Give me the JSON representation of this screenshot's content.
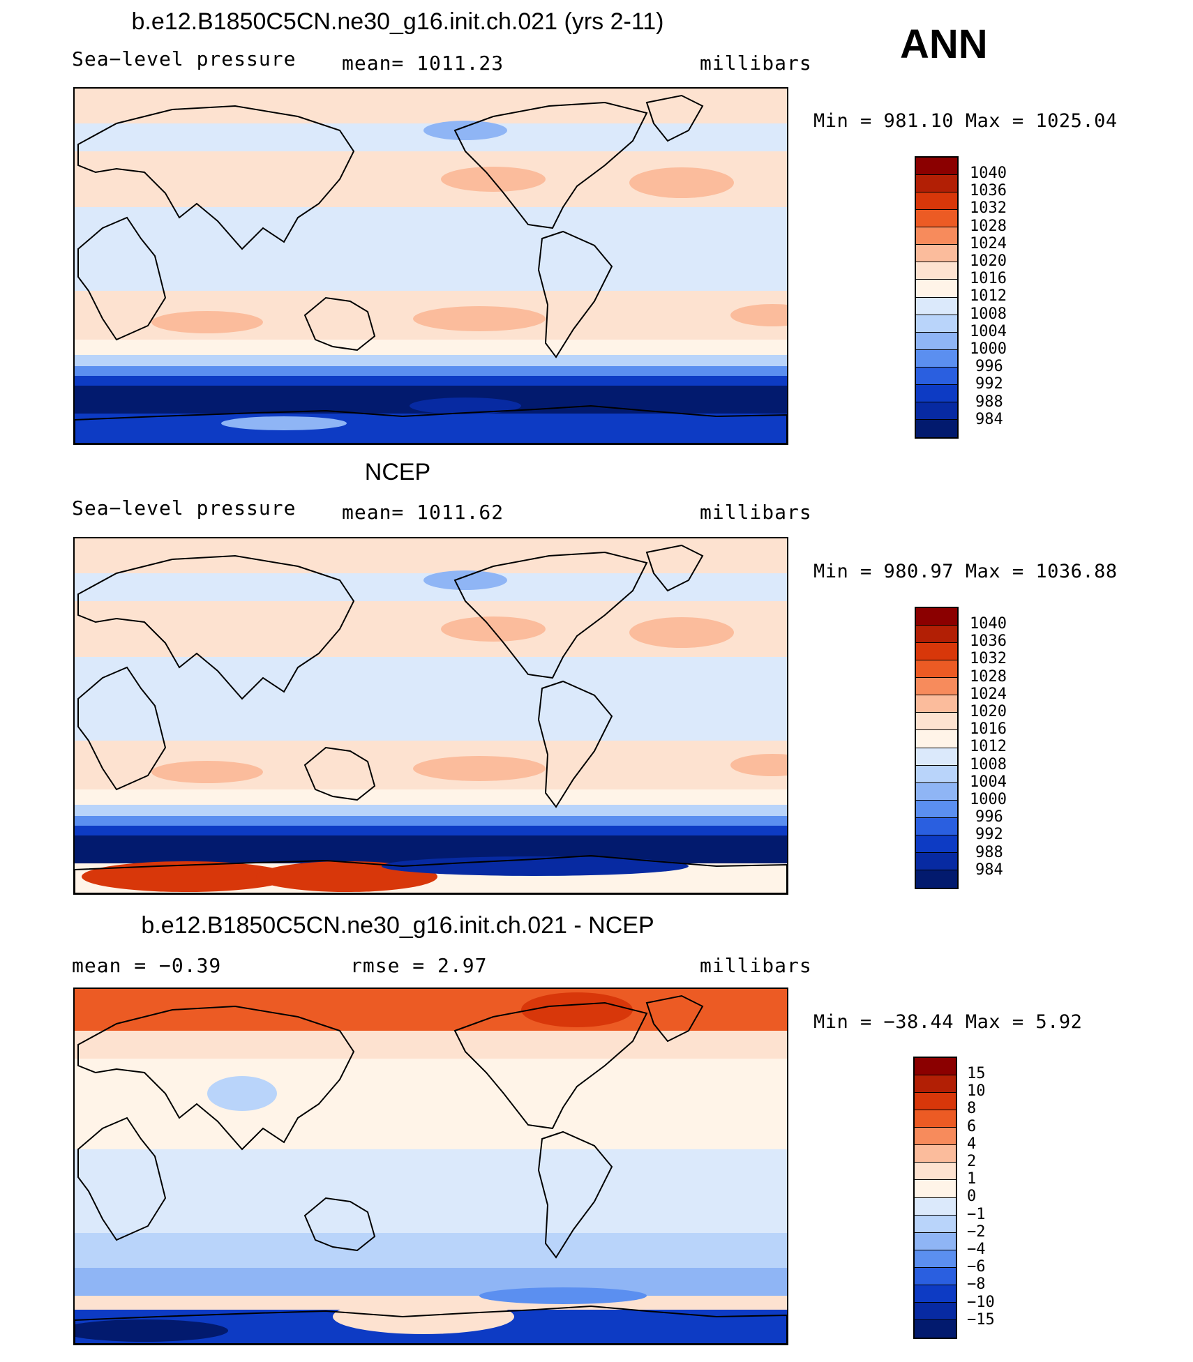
{
  "season": "ANN",
  "panels": [
    {
      "title": "b.e12.B1850C5CN.ne30_g16.init.ch.021 (yrs 2-11)",
      "left_label": "Sea−level pressure",
      "center_label": "mean=  1011.23",
      "right_label": "millibars",
      "minmax": "Min  =  981.10  Max  =  1025.04",
      "colorbar": {
        "labels": [
          "1040",
          "1036",
          "1032",
          "1028",
          "1024",
          "1020",
          "1016",
          "1012",
          "1008",
          "1004",
          "1000",
          "996",
          "992",
          "988",
          "984"
        ],
        "colors": [
          "#8b0000",
          "#b21f05",
          "#d8370a",
          "#ec5b24",
          "#f78b5c",
          "#fbbc9c",
          "#fde2d0",
          "#fff4e8",
          "#dbe9fb",
          "#b9d4fa",
          "#8fb5f5",
          "#5b8ff0",
          "#2a5fe0",
          "#0d3bc4",
          "#072aa2",
          "#021a6e"
        ]
      },
      "map_kind": "model"
    },
    {
      "title": "NCEP",
      "left_label": "Sea−level pressure",
      "center_label": "mean=  1011.62",
      "right_label": "millibars",
      "minmax": "Min  =  980.97  Max  =  1036.88",
      "colorbar": {
        "labels": [
          "1040",
          "1036",
          "1032",
          "1028",
          "1024",
          "1020",
          "1016",
          "1012",
          "1008",
          "1004",
          "1000",
          "996",
          "992",
          "988",
          "984"
        ],
        "colors": [
          "#8b0000",
          "#b21f05",
          "#d8370a",
          "#ec5b24",
          "#f78b5c",
          "#fbbc9c",
          "#fde2d0",
          "#fff4e8",
          "#dbe9fb",
          "#b9d4fa",
          "#8fb5f5",
          "#5b8ff0",
          "#2a5fe0",
          "#0d3bc4",
          "#072aa2",
          "#021a6e"
        ]
      },
      "map_kind": "obs"
    },
    {
      "title": "b.e12.B1850C5CN.ne30_g16.init.ch.021 - NCEP",
      "left_label": "mean  =    −0.39",
      "center_label": "rmse  =     2.97",
      "right_label": "millibars",
      "minmax": "Min  =  −38.44  Max  =      5.92",
      "colorbar": {
        "labels": [
          "15",
          "10",
          "8",
          "6",
          "4",
          "2",
          "1",
          "0",
          "−1",
          "−2",
          "−4",
          "−6",
          "−8",
          "−10",
          "−15"
        ],
        "colors": [
          "#8b0000",
          "#b21f05",
          "#d8370a",
          "#ec5b24",
          "#f78b5c",
          "#fbbc9c",
          "#fde2d0",
          "#fff4e8",
          "#dbe9fb",
          "#b9d4fa",
          "#8fb5f5",
          "#5b8ff0",
          "#2a5fe0",
          "#0d3bc4",
          "#072aa2",
          "#021a6e"
        ]
      },
      "map_kind": "diff"
    }
  ]
}
